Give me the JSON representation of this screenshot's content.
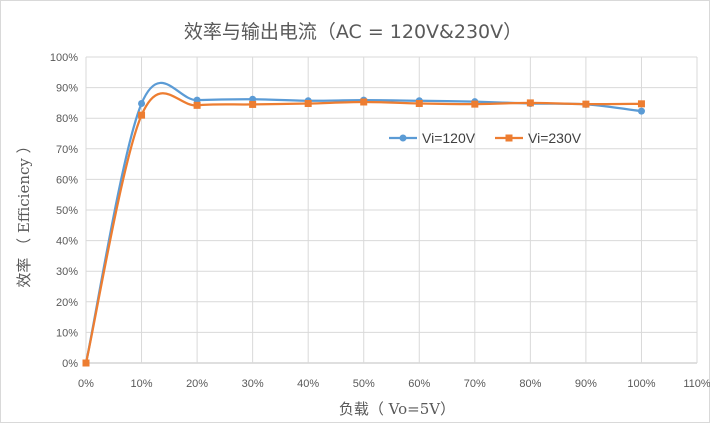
{
  "chart_data": {
    "type": "line",
    "title": "效率与输出电流（AC = 120V&230V）",
    "xlabel": "负载（ Vo=5V）",
    "ylabel": "效率 （ Efficiency ）",
    "x": [
      0,
      10,
      20,
      30,
      40,
      50,
      60,
      70,
      80,
      90,
      100
    ],
    "xlim": [
      0,
      110
    ],
    "ylim": [
      0,
      100
    ],
    "x_ticks": [
      "0%",
      "10%",
      "20%",
      "30%",
      "40%",
      "50%",
      "60%",
      "70%",
      "80%",
      "90%",
      "100%",
      "110%"
    ],
    "y_ticks": [
      "0%",
      "10%",
      "20%",
      "30%",
      "40%",
      "50%",
      "60%",
      "70%",
      "80%",
      "90%",
      "100%"
    ],
    "grid": true,
    "legend_position": "center-right",
    "smooth": true,
    "series": [
      {
        "name": "Vi=120V",
        "color": "#5b9bd5",
        "marker": "circle",
        "values": [
          0,
          84.8,
          85.9,
          86.2,
          85.7,
          85.9,
          85.7,
          85.4,
          84.8,
          84.5,
          82.3
        ]
      },
      {
        "name": "Vi=230V",
        "color": "#ed7d31",
        "marker": "square",
        "values": [
          0,
          81.0,
          84.2,
          84.5,
          84.8,
          85.3,
          84.8,
          84.6,
          85.0,
          84.6,
          84.7
        ]
      }
    ]
  }
}
